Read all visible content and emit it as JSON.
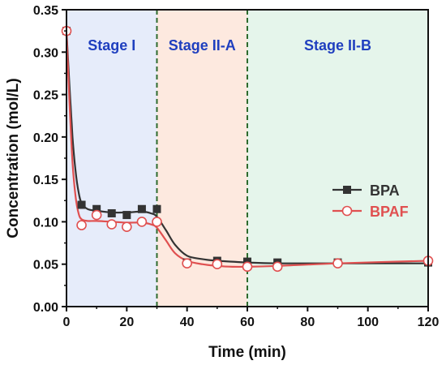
{
  "chart_data": {
    "type": "line",
    "xlabel": "Time (min)",
    "ylabel": "Concentration (mol/L)",
    "xlim": [
      0,
      120
    ],
    "ylim": [
      0.0,
      0.35
    ],
    "x_ticks": [
      "0",
      "20",
      "40",
      "60",
      "80",
      "100",
      "120"
    ],
    "y_ticks": [
      "0.00",
      "0.05",
      "0.10",
      "0.15",
      "0.20",
      "0.25",
      "0.30",
      "0.35"
    ],
    "grid": false,
    "legend_position": "right",
    "stages": [
      {
        "label": "Stage I",
        "x_start": 0,
        "x_end": 30,
        "color": "#e6ecfa",
        "label_color": "#1f3fbf"
      },
      {
        "label": "Stage II-A",
        "x_start": 30,
        "x_end": 60,
        "color": "#fde9df",
        "label_color": "#1f3fbf"
      },
      {
        "label": "Stage II-B",
        "x_start": 60,
        "x_end": 120,
        "color": "#e5f5eb",
        "label_color": "#1f3fbf"
      }
    ],
    "stage_dividers": [
      30,
      60
    ],
    "divider_color": "#2e6b2e",
    "series": [
      {
        "name": "BPA",
        "color": "#333333",
        "marker": "square-filled",
        "x": [
          0,
          5,
          10,
          15,
          20,
          25,
          30,
          40,
          50,
          60,
          70,
          90,
          120
        ],
        "values": [
          0.325,
          0.12,
          0.115,
          0.11,
          0.108,
          0.115,
          0.115,
          0.052,
          0.054,
          0.053,
          0.052,
          0.052,
          0.052
        ]
      },
      {
        "name": "BPAF",
        "color": "#e05050",
        "marker": "circle-open",
        "x": [
          0,
          5,
          10,
          15,
          20,
          25,
          30,
          40,
          50,
          60,
          70,
          90,
          120
        ],
        "values": [
          0.325,
          0.096,
          0.108,
          0.097,
          0.094,
          0.1,
          0.1,
          0.051,
          0.05,
          0.047,
          0.047,
          0.051,
          0.054
        ]
      }
    ],
    "fit_curves": [
      {
        "series": "BPA",
        "color": "#333333",
        "x": [
          0,
          1,
          2,
          3,
          4,
          5,
          7,
          10,
          15,
          20,
          25,
          28,
          30,
          33,
          36,
          40,
          45,
          50,
          55,
          60,
          70,
          90,
          120
        ],
        "values": [
          0.325,
          0.26,
          0.2,
          0.16,
          0.135,
          0.122,
          0.115,
          0.113,
          0.111,
          0.111,
          0.112,
          0.11,
          0.106,
          0.09,
          0.073,
          0.06,
          0.056,
          0.054,
          0.053,
          0.052,
          0.051,
          0.051,
          0.051
        ]
      },
      {
        "series": "BPAF",
        "color": "#e05050",
        "x": [
          0,
          1,
          2,
          3,
          4,
          5,
          7,
          10,
          15,
          20,
          25,
          28,
          30,
          33,
          36,
          40,
          45,
          50,
          55,
          60,
          70,
          90,
          120
        ],
        "values": [
          0.325,
          0.24,
          0.17,
          0.13,
          0.11,
          0.103,
          0.101,
          0.101,
          0.1,
          0.099,
          0.099,
          0.097,
          0.093,
          0.078,
          0.063,
          0.054,
          0.05,
          0.048,
          0.047,
          0.047,
          0.048,
          0.051,
          0.054
        ]
      }
    ]
  }
}
